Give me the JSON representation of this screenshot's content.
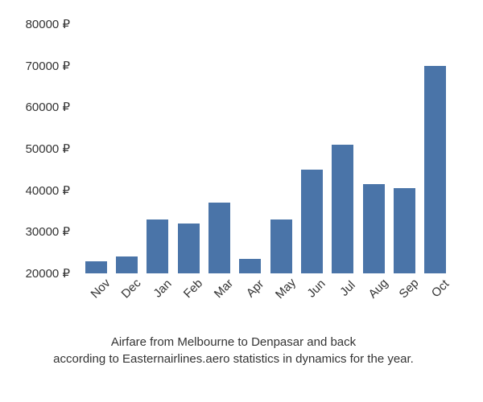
{
  "chart": {
    "type": "bar",
    "categories": [
      "Nov",
      "Dec",
      "Jan",
      "Feb",
      "Mar",
      "Apr",
      "May",
      "Jun",
      "Jul",
      "Aug",
      "Sep",
      "Oct"
    ],
    "values": [
      23000,
      24000,
      33000,
      32000,
      37000,
      23500,
      33000,
      45000,
      51000,
      41500,
      40500,
      70000
    ],
    "bar_color": "#4a74a8",
    "y_min": 20000,
    "y_max": 80000,
    "y_tick_step": 10000,
    "y_ticks": [
      20000,
      30000,
      40000,
      50000,
      60000,
      70000,
      80000
    ],
    "y_tick_labels": [
      "20000 ₽",
      "30000 ₽",
      "40000 ₽",
      "50000 ₽",
      "60000 ₽",
      "70000 ₽",
      "80000 ₽"
    ],
    "background_color": "#ffffff",
    "label_fontsize": 15,
    "label_color": "#333333",
    "bar_width_ratio": 0.7,
    "x_label_rotation": -45
  },
  "caption": {
    "line1": "Airfare from Melbourne to Denpasar and back",
    "line2": "according to Easternairlines.aero statistics in dynamics for the year."
  }
}
